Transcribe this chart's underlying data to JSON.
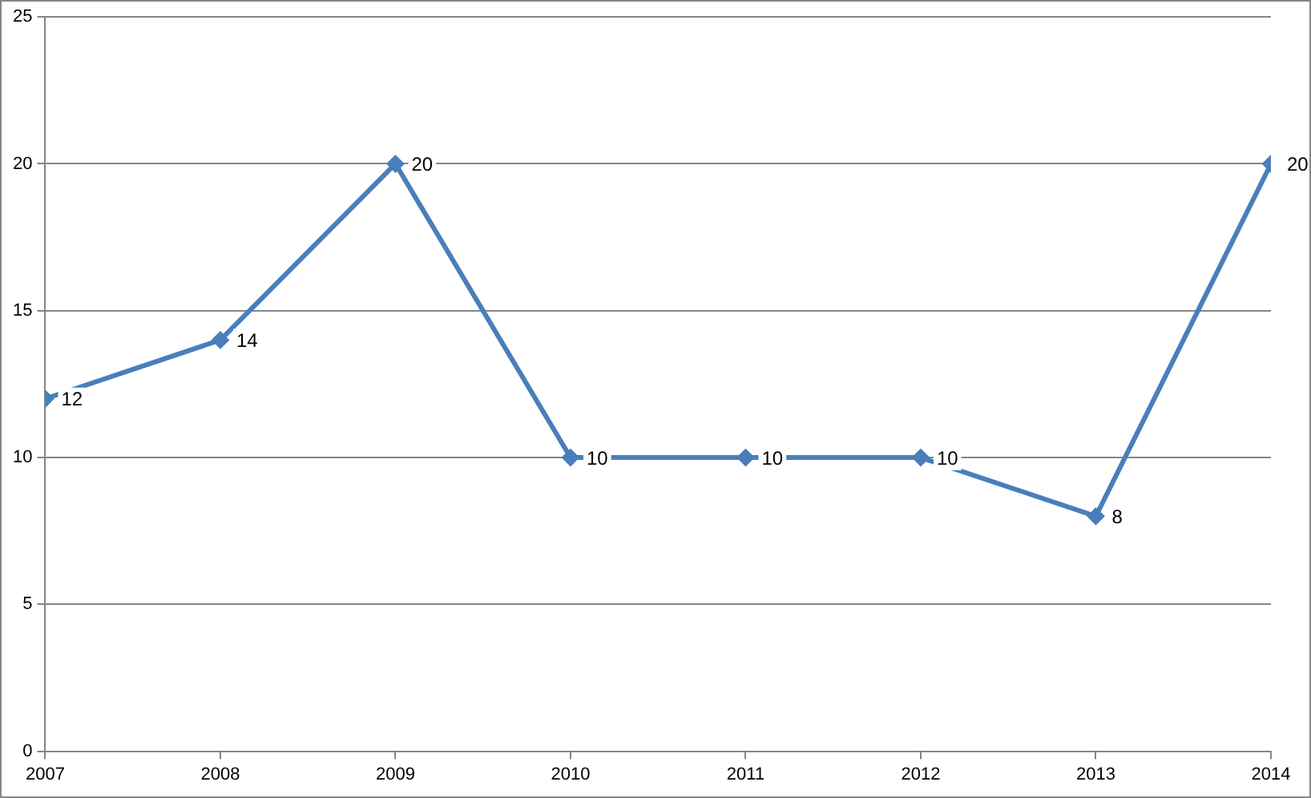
{
  "chart_data": {
    "type": "line",
    "x": [
      2007,
      2008,
      2009,
      2010,
      2011,
      2012,
      2013,
      2014
    ],
    "series": [
      {
        "color": "#4a7ebb",
        "values": [
          12,
          14,
          20,
          10,
          10,
          10,
          8,
          20
        ]
      }
    ],
    "xlim": [
      2007,
      2014
    ],
    "xticks": [
      2007,
      2008,
      2009,
      2010,
      2011,
      2012,
      2013,
      2014
    ],
    "ylim": [
      0,
      25
    ],
    "yticks": [
      0,
      5,
      10,
      15,
      20,
      25
    ],
    "grid": "y",
    "legend": false,
    "marker": "diamond",
    "line_style": "solid",
    "data_labels": true
  }
}
